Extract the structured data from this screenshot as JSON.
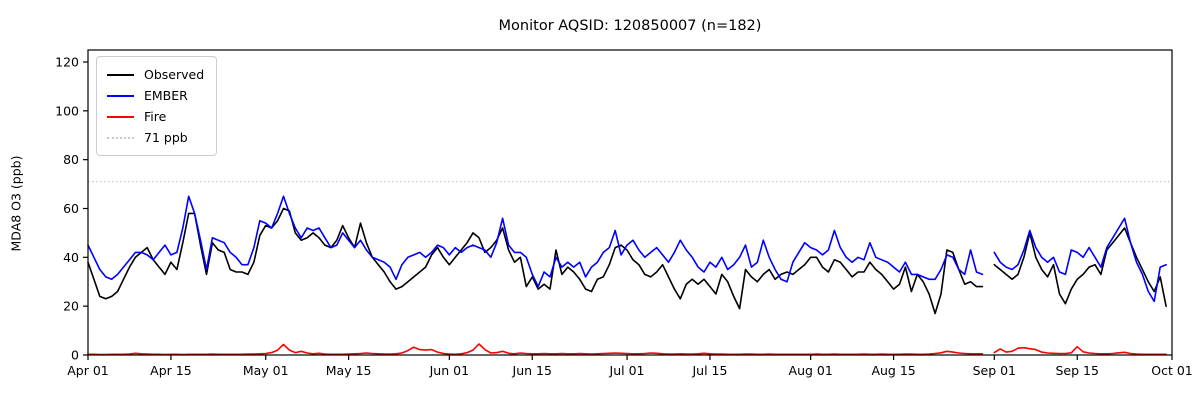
{
  "figure": {
    "title": "Monitor AQSID: 120850007 (n=182)"
  },
  "legend": {
    "items": [
      {
        "label": "Observed",
        "color": "#000000",
        "style": "solid"
      },
      {
        "label": "EMBER",
        "color": "#0000ff",
        "style": "solid"
      },
      {
        "label": "Fire",
        "color": "#ff0000",
        "style": "solid"
      },
      {
        "label": "71 ppb",
        "color": "#c8c8c8",
        "style": "dotted"
      }
    ]
  },
  "chart_data": {
    "type": "line",
    "title": "Monitor AQSID: 120850007 (n=182)",
    "xlabel": "",
    "ylabel": "MDA8 O3 (ppb)",
    "ylim": [
      0,
      125
    ],
    "y_ticks": [
      0,
      20,
      40,
      60,
      80,
      100,
      120
    ],
    "x_tick_labels": [
      "Apr 01",
      "Apr 15",
      "May 01",
      "May 15",
      "Jun 01",
      "Jun 15",
      "Jul 01",
      "Jul 15",
      "Aug 01",
      "Aug 15",
      "Sep 01",
      "Sep 15",
      "Oct 01"
    ],
    "x_tick_days": [
      0,
      14,
      30,
      44,
      61,
      75,
      91,
      105,
      122,
      136,
      153,
      167,
      183
    ],
    "x_total_days": 183,
    "x_unit": "daily values, Apr 01 through Sep 30; null = missing day (Aug 31)",
    "grid": false,
    "legend_position": "upper left",
    "threshold_line": {
      "label": "71 ppb",
      "value": 71,
      "color": "#c8c8c8",
      "style": "dotted"
    },
    "series": [
      {
        "name": "Observed",
        "color": "#000000",
        "values": [
          38,
          31,
          24,
          23,
          24,
          26,
          31,
          36,
          40,
          42,
          44,
          39,
          36,
          33,
          38,
          35,
          46,
          58,
          58,
          45,
          33,
          46,
          43,
          42,
          35,
          34,
          34,
          33,
          38,
          49,
          53,
          52,
          55,
          60,
          59,
          50,
          47,
          48,
          50,
          48,
          45,
          44,
          47,
          53,
          48,
          44,
          54,
          46,
          40,
          37,
          34,
          30,
          27,
          28,
          30,
          32,
          34,
          36,
          41,
          44,
          40,
          37,
          40,
          43,
          46,
          50,
          48,
          42,
          44,
          47,
          52,
          43,
          38,
          40,
          28,
          32,
          27,
          29,
          27,
          43,
          33,
          36,
          34,
          31,
          27,
          26,
          31,
          32,
          37,
          44,
          45,
          43,
          39,
          37,
          33,
          32,
          34,
          37,
          32,
          27,
          23,
          29,
          31,
          29,
          31,
          28,
          25,
          33,
          30,
          24,
          19,
          35,
          32,
          30,
          33,
          35,
          31,
          33,
          34,
          33,
          35,
          37,
          40,
          40,
          36,
          34,
          39,
          38,
          35,
          32,
          34,
          34,
          38,
          35,
          33,
          30,
          27,
          29,
          36,
          26,
          33,
          30,
          25,
          17,
          25,
          43,
          42,
          35,
          29,
          30,
          28,
          28,
          null,
          37,
          35,
          33,
          31,
          33,
          40,
          50,
          40,
          35,
          32,
          37,
          25,
          21,
          27,
          31,
          33,
          36,
          37,
          33,
          43,
          46,
          49,
          52,
          46,
          40,
          35,
          30,
          26,
          32,
          20
        ]
      },
      {
        "name": "EMBER",
        "color": "#0000ff",
        "values": [
          45,
          40,
          35,
          32,
          31,
          33,
          36,
          39,
          42,
          42,
          41,
          39,
          42,
          45,
          41,
          42,
          52,
          65,
          58,
          47,
          35,
          48,
          47,
          46,
          42,
          40,
          37,
          37,
          44,
          55,
          54,
          52,
          58,
          65,
          58,
          52,
          48,
          52,
          51,
          52,
          48,
          44,
          45,
          50,
          47,
          44,
          47,
          43,
          40,
          39,
          38,
          36,
          31,
          37,
          40,
          41,
          42,
          40,
          42,
          45,
          44,
          41,
          44,
          42,
          44,
          45,
          44,
          43,
          40,
          46,
          56,
          45,
          42,
          42,
          40,
          33,
          28,
          34,
          32,
          40,
          36,
          38,
          36,
          38,
          32,
          36,
          38,
          42,
          44,
          51,
          41,
          45,
          47,
          43,
          40,
          42,
          44,
          41,
          38,
          42,
          47,
          43,
          40,
          36,
          34,
          38,
          36,
          40,
          35,
          37,
          40,
          45,
          36,
          38,
          47,
          40,
          35,
          31,
          30,
          38,
          42,
          46,
          44,
          43,
          41,
          43,
          51,
          44,
          40,
          38,
          40,
          39,
          46,
          40,
          39,
          38,
          36,
          34,
          38,
          33,
          33,
          32,
          31,
          31,
          35,
          41,
          40,
          35,
          33,
          43,
          34,
          33,
          null,
          42,
          38,
          36,
          35,
          37,
          43,
          51,
          44,
          40,
          38,
          40,
          34,
          33,
          43,
          42,
          40,
          44,
          40,
          36,
          44,
          48,
          52,
          56,
          46,
          38,
          33,
          26,
          22,
          36,
          37
        ]
      },
      {
        "name": "Fire",
        "color": "#ff0000",
        "values": [
          0.3,
          0.3,
          0.2,
          0.2,
          0.3,
          0.3,
          0.3,
          0.4,
          0.7,
          0.5,
          0.4,
          0.3,
          0.3,
          0.2,
          0.3,
          0.3,
          0.2,
          0.3,
          0.3,
          0.3,
          0.3,
          0.4,
          0.3,
          0.3,
          0.3,
          0.3,
          0.3,
          0.4,
          0.4,
          0.5,
          0.6,
          1.0,
          2.0,
          4.3,
          2.0,
          1.0,
          1.5,
          0.8,
          0.5,
          0.7,
          0.4,
          0.3,
          0.3,
          0.3,
          0.4,
          0.5,
          0.6,
          0.8,
          0.6,
          0.5,
          0.4,
          0.4,
          0.5,
          0.8,
          1.8,
          3.2,
          2.2,
          2.0,
          2.2,
          1.2,
          0.6,
          0.4,
          0.3,
          0.5,
          1.0,
          2.0,
          4.5,
          2.2,
          0.8,
          1.0,
          1.5,
          0.7,
          0.5,
          0.8,
          0.6,
          0.5,
          0.5,
          0.6,
          0.5,
          0.5,
          0.6,
          0.5,
          0.5,
          0.6,
          0.5,
          0.4,
          0.5,
          0.6,
          0.7,
          0.8,
          0.7,
          0.6,
          0.5,
          0.5,
          0.6,
          0.8,
          0.7,
          0.5,
          0.4,
          0.4,
          0.5,
          0.4,
          0.4,
          0.5,
          0.7,
          0.5,
          0.4,
          0.4,
          0.3,
          0.3,
          0.3,
          0.4,
          0.4,
          0.3,
          0.3,
          0.4,
          0.3,
          0.3,
          0.3,
          0.3,
          0.3,
          0.3,
          0.3,
          0.4,
          0.3,
          0.3,
          0.4,
          0.3,
          0.3,
          0.3,
          0.3,
          0.4,
          0.3,
          0.3,
          0.4,
          0.3,
          0.3,
          0.3,
          0.4,
          0.4,
          0.3,
          0.3,
          0.4,
          0.6,
          0.9,
          1.5,
          1.2,
          0.8,
          0.6,
          0.5,
          0.5,
          0.5,
          null,
          1.0,
          2.5,
          1.2,
          1.5,
          2.8,
          3.0,
          2.6,
          2.2,
          1.2,
          0.8,
          0.7,
          0.6,
          0.6,
          0.9,
          3.4,
          1.3,
          0.8,
          0.6,
          0.5,
          0.5,
          0.6,
          0.9,
          1.1,
          0.6,
          0.4,
          0.3,
          0.3,
          0.3,
          0.3,
          0.3
        ]
      }
    ]
  }
}
